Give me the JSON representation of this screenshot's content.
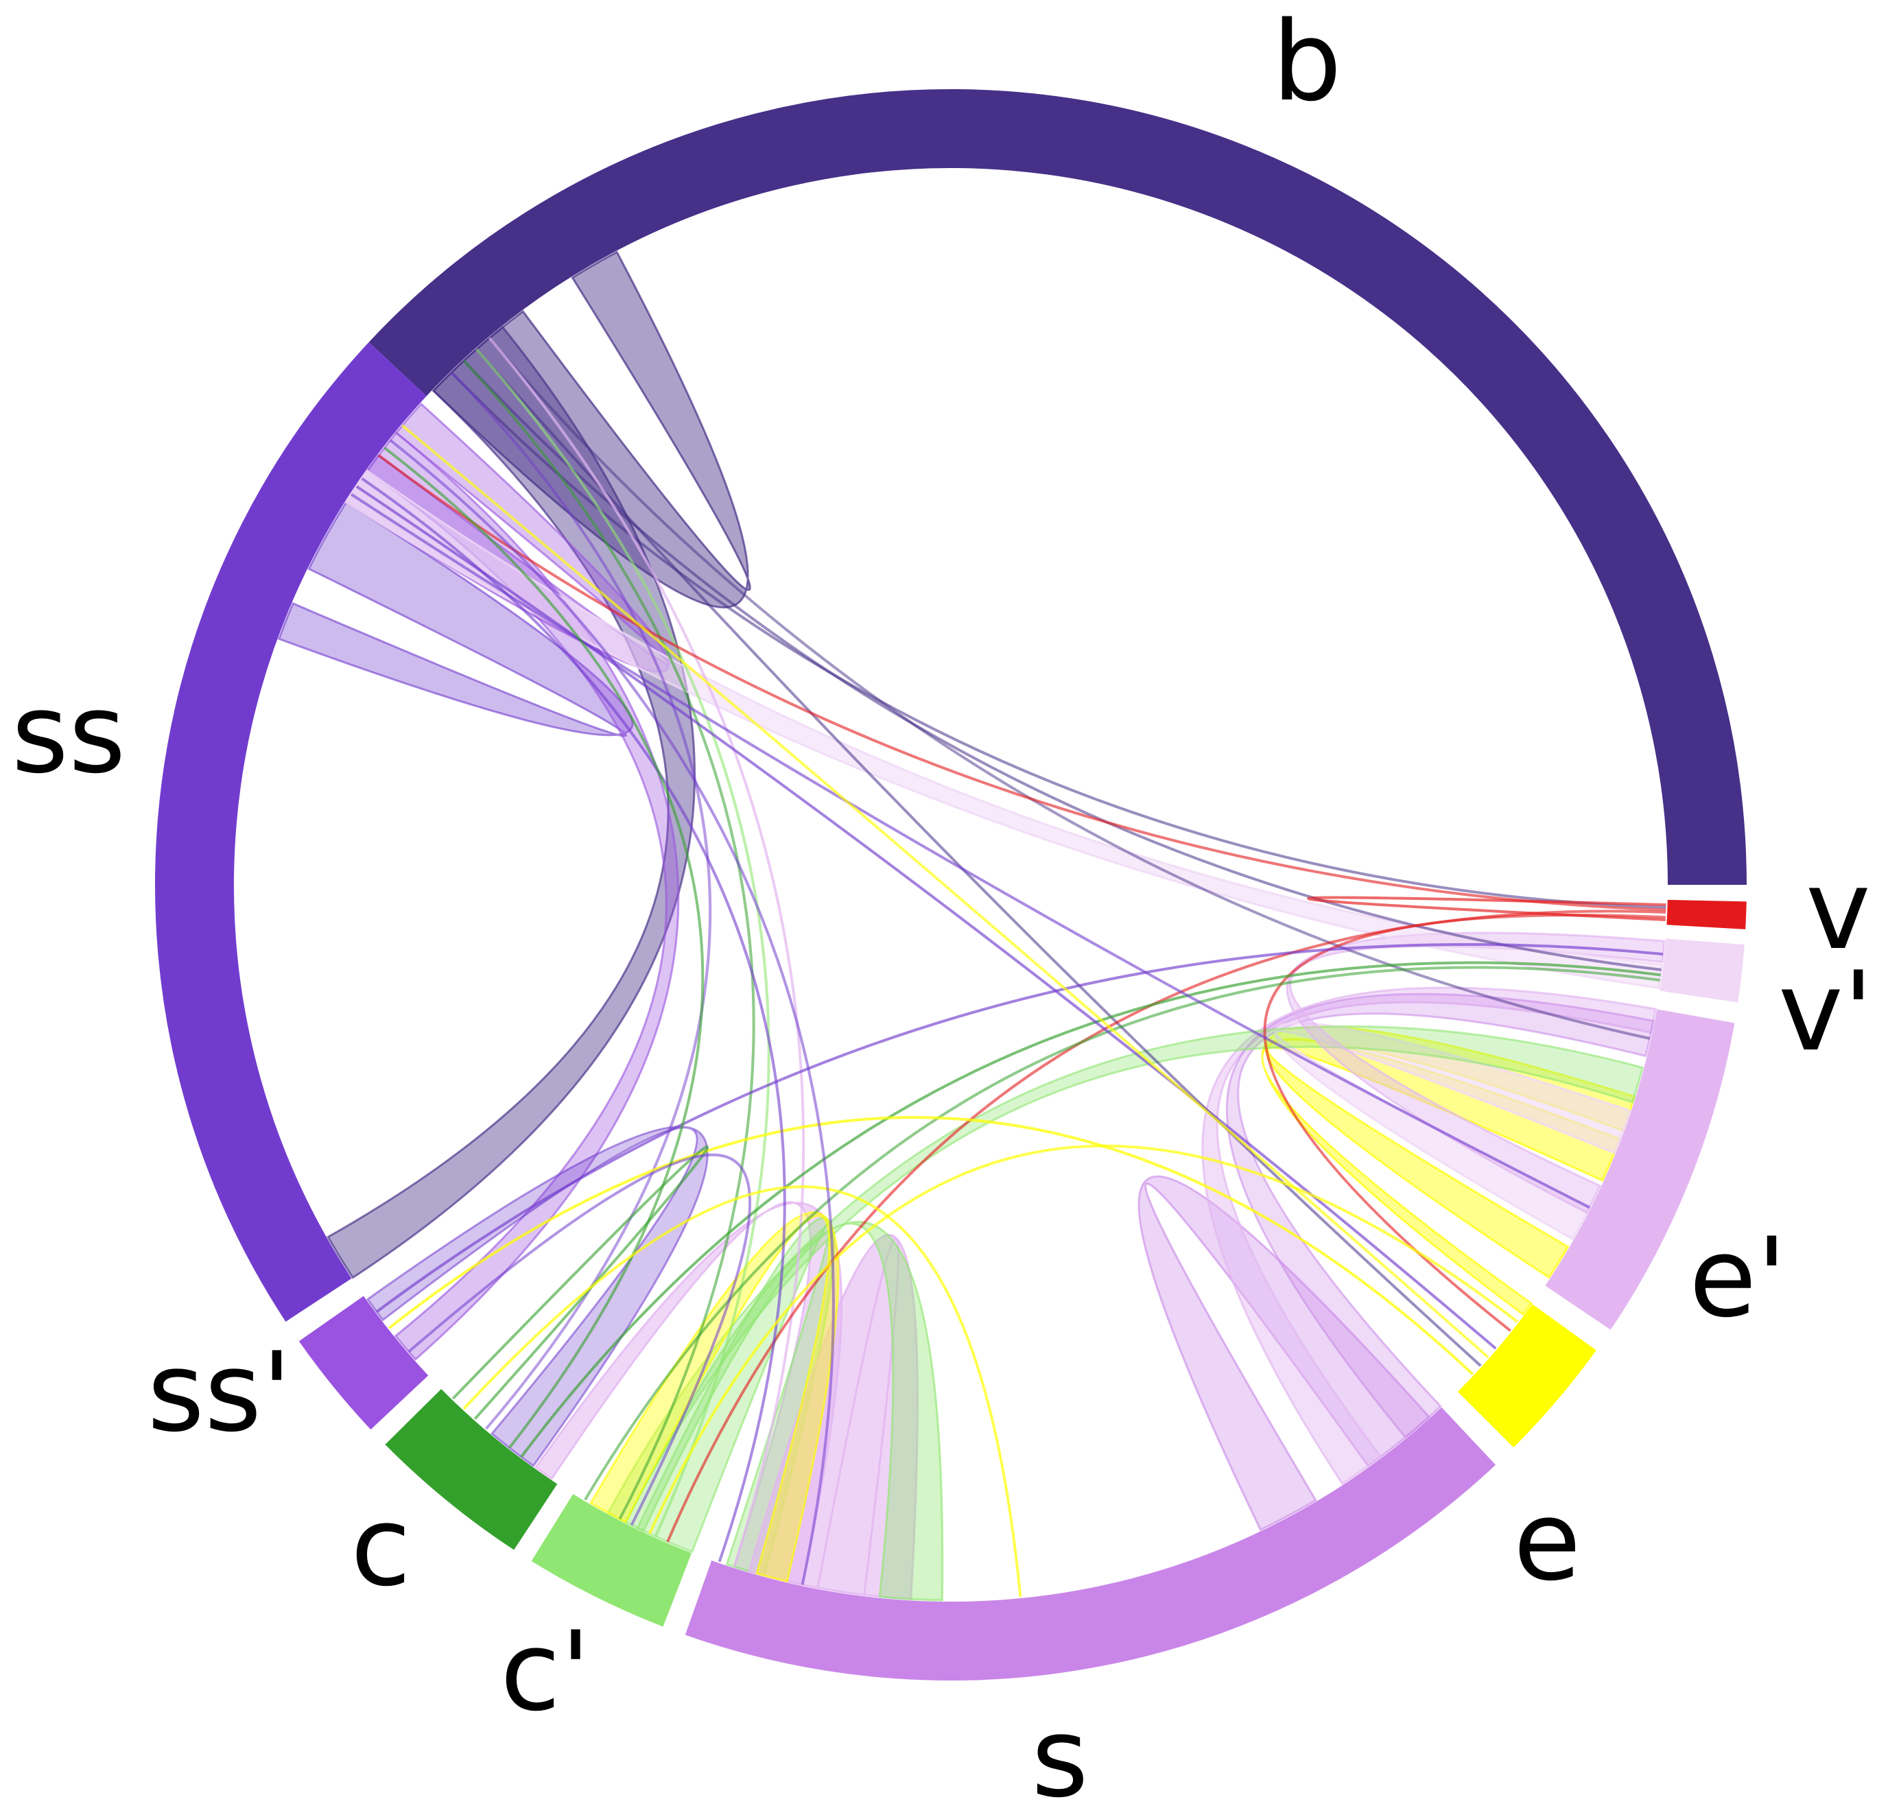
{
  "chart_data": {
    "type": "chord",
    "segments": [
      {
        "id": "b",
        "label": "b",
        "color": "#463088"
      },
      {
        "id": "v",
        "label": "v",
        "color": "#e31a1c"
      },
      {
        "id": "vp",
        "label": "v'",
        "color": "#f0d8f6"
      },
      {
        "id": "ep",
        "label": "e'",
        "color": "#e3b6f1"
      },
      {
        "id": "e",
        "label": "e",
        "color": "#ffff00"
      },
      {
        "id": "s",
        "label": "s",
        "color": "#c986e8"
      },
      {
        "id": "cp",
        "label": "c'",
        "color": "#90e672"
      },
      {
        "id": "c",
        "label": "c",
        "color": "#33a02c"
      },
      {
        "id": "ssp",
        "label": "ss'",
        "color": "#9a53e0"
      },
      {
        "id": "ss",
        "label": "ss",
        "color": "#713cce"
      }
    ]
  }
}
